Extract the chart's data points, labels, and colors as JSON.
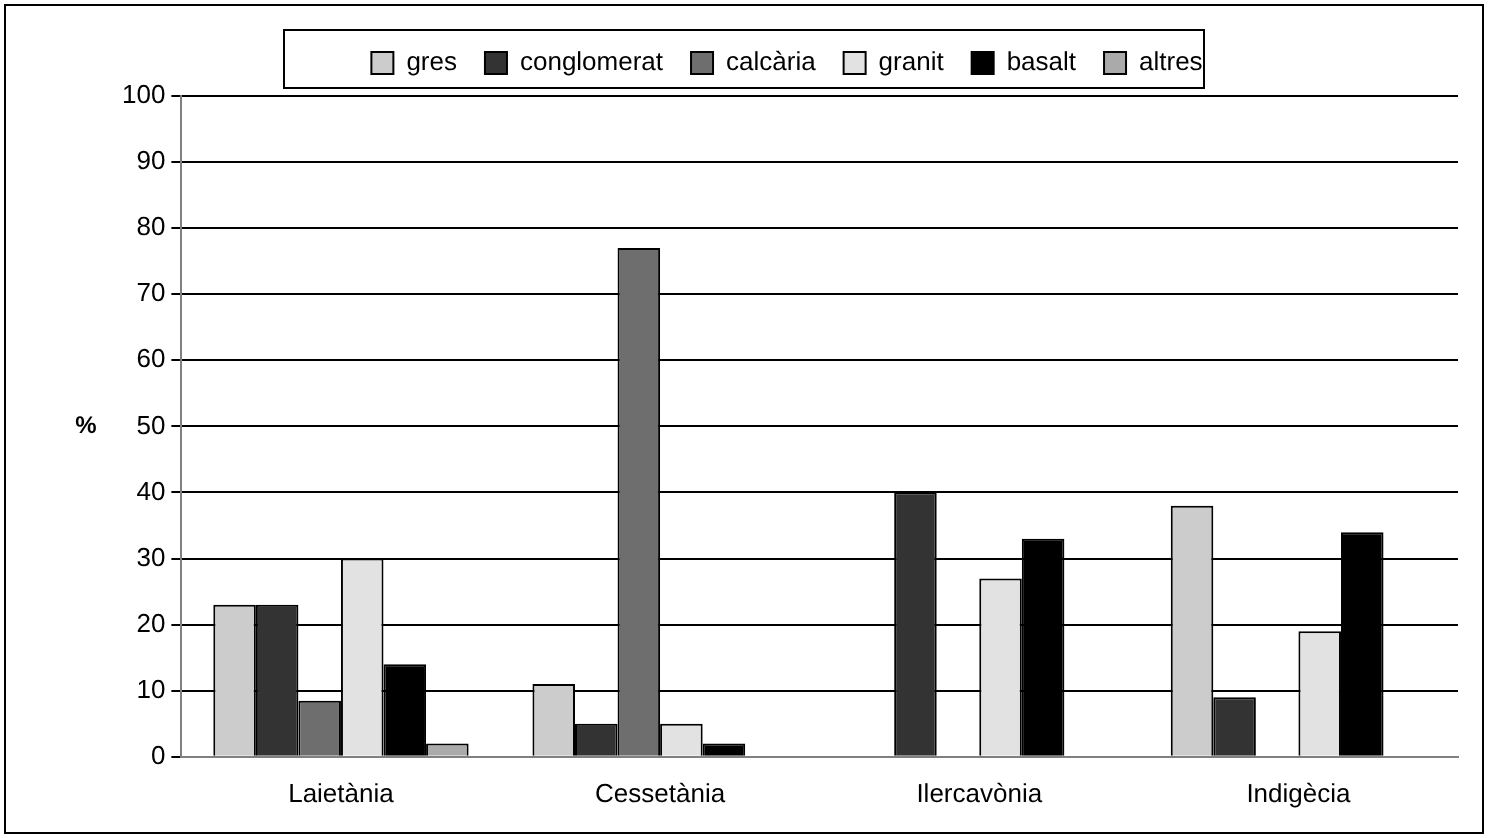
{
  "chart_data": {
    "type": "bar",
    "ylabel": "%",
    "categories": [
      "Laietània",
      "Cessetània",
      "Ilercavònia",
      "Indigècia"
    ],
    "series": [
      {
        "name": "gres",
        "color": "#cccccc",
        "values": [
          23,
          11,
          0,
          38
        ]
      },
      {
        "name": "conglomerat",
        "color": "#333333",
        "values": [
          23,
          5,
          40,
          9
        ]
      },
      {
        "name": "calcària",
        "color": "#6e6e6e",
        "values": [
          8.5,
          77,
          0,
          0
        ]
      },
      {
        "name": "granit",
        "color": "#e2e2e2",
        "values": [
          30,
          5,
          27,
          19
        ]
      },
      {
        "name": "basalt",
        "color": "#000000",
        "values": [
          14,
          2,
          33,
          34
        ]
      },
      {
        "name": "altres",
        "color": "#aaaaaa",
        "values": [
          2,
          0,
          0,
          0
        ]
      }
    ],
    "ylim": [
      0,
      100
    ],
    "yticks": [
      0,
      10,
      20,
      30,
      40,
      50,
      60,
      70,
      80,
      90,
      100
    ],
    "grid": "y",
    "legend": "top"
  }
}
